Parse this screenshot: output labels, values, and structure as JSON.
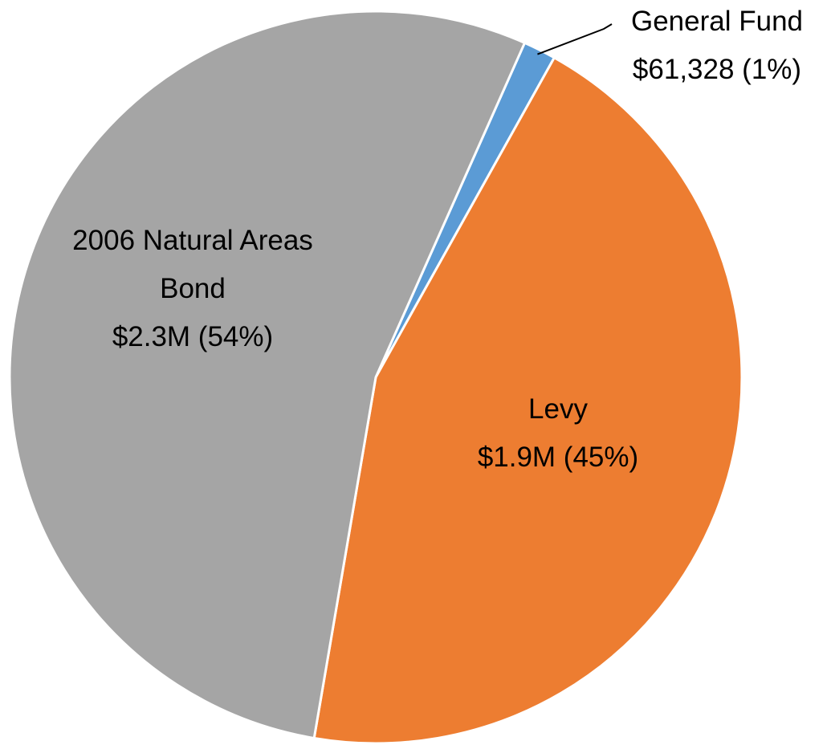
{
  "chart_data": {
    "type": "pie",
    "categories": [
      "General Fund",
      "Levy",
      "2006 Natural Areas Bond"
    ],
    "values": [
      61328,
      1900000,
      2300000
    ],
    "value_labels": [
      "$61,328 (1%)",
      "$1.9M (45%)",
      "$2.3M (54%)"
    ],
    "colors": [
      "#5b9bd5",
      "#ed7d31",
      "#a5a5a5"
    ]
  }
}
